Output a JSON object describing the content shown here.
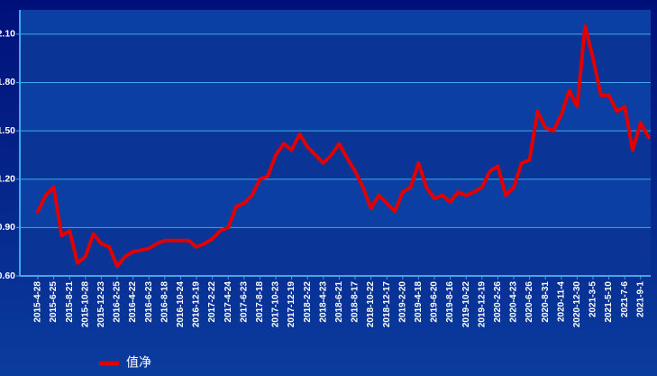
{
  "chart_data": {
    "type": "line",
    "categories": [
      "2015-4-28",
      null,
      "2015-6-25",
      null,
      "2015-8-21",
      null,
      "2015-10-28",
      null,
      "2015-12-23",
      null,
      "2016-2-25",
      null,
      "2016-4-22",
      null,
      "2016-6-23",
      null,
      "2016-8-18",
      null,
      "2016-10-24",
      null,
      "2016-12-19",
      null,
      "2017-2-22",
      null,
      "2017-4-24",
      null,
      "2017-6-23",
      null,
      "2017-8-18",
      null,
      "2017-10-23",
      null,
      "2017-12-19",
      null,
      "2018-2-22",
      null,
      "2018-4-23",
      null,
      "2018-6-21",
      null,
      "2018-8-17",
      null,
      "2018-10-22",
      null,
      "2018-12-17",
      null,
      "2019-2-20",
      null,
      "2019-4-18",
      null,
      "2019-6-20",
      null,
      "2019-8-16",
      null,
      "2019-10-22",
      null,
      "2019-12-19",
      null,
      "2020-2-26",
      null,
      "2020-4-23",
      null,
      "2020-6-26",
      null,
      "2020-8-31",
      null,
      "2020-11-4",
      null,
      "2020-12-30",
      null,
      "2021-3-5",
      null,
      "2021-5-10",
      null,
      "2021-7-6",
      null,
      "2021-9-1",
      null
    ],
    "series": [
      {
        "name": "值净",
        "color": "#e00000",
        "values": [
          1.0,
          1.1,
          1.15,
          0.85,
          0.88,
          0.68,
          0.72,
          0.86,
          0.8,
          0.78,
          0.66,
          0.72,
          0.75,
          0.76,
          0.77,
          0.8,
          0.82,
          0.82,
          0.82,
          0.82,
          0.78,
          0.8,
          0.83,
          0.88,
          0.9,
          1.03,
          1.05,
          1.1,
          1.2,
          1.22,
          1.35,
          1.42,
          1.38,
          1.48,
          1.4,
          1.35,
          1.3,
          1.35,
          1.42,
          1.33,
          1.25,
          1.15,
          1.02,
          1.1,
          1.05,
          1.0,
          1.12,
          1.15,
          1.3,
          1.15,
          1.08,
          1.1,
          1.06,
          1.12,
          1.1,
          1.12,
          1.15,
          1.25,
          1.28,
          1.1,
          1.15,
          1.3,
          1.32,
          1.62,
          1.52,
          1.5,
          1.6,
          1.75,
          1.65,
          2.15,
          1.95,
          1.72,
          1.72,
          1.62,
          1.65,
          1.38,
          1.55,
          1.46
        ]
      }
    ],
    "ylim": [
      0.6,
      2.25
    ],
    "yticks": [
      {
        "value": 0.6,
        "label": "0.60"
      },
      {
        "value": 0.9,
        "label": "0.90"
      },
      {
        "value": 1.2,
        "label": "1.20"
      },
      {
        "value": 1.5,
        "label": "1.50"
      },
      {
        "value": 1.8,
        "label": "1.80"
      },
      {
        "value": 2.1,
        "label": "2.10"
      }
    ],
    "grid": true
  }
}
